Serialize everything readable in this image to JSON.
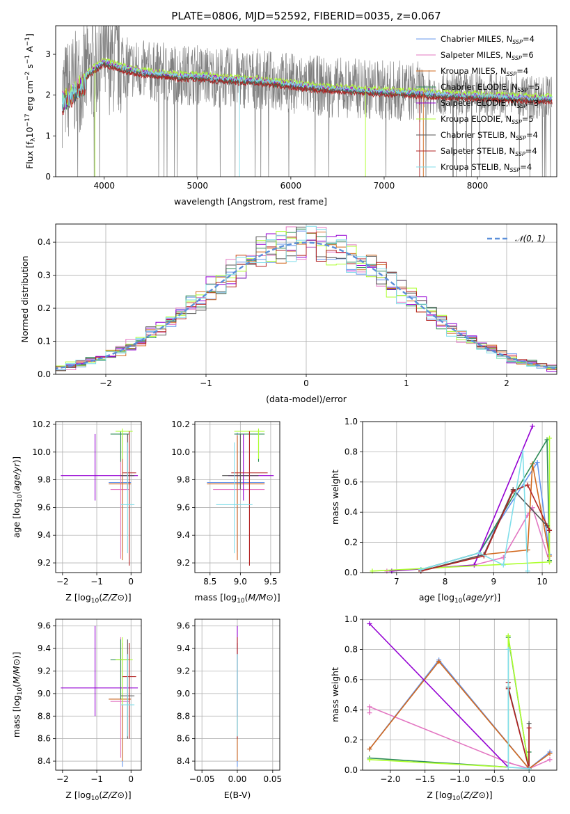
{
  "figure": {
    "title": "PLATE=0806, MJD=52592, FIBERID=0035, z=0.067"
  },
  "models": [
    {
      "name": "Chabrier MILES, N_SSP=4",
      "label_main": "Chabrier MILES, N",
      "label_sub": "SSP",
      "label_tail": "=4",
      "color": "#6495ed"
    },
    {
      "name": "Salpeter MILES, N_SSP=6",
      "label_main": "Salpeter MILES, N",
      "label_sub": "SSP",
      "label_tail": "=6",
      "color": "#e377c2"
    },
    {
      "name": "Kroupa MILES, N_SSP=4",
      "label_main": "Kroupa MILES, N",
      "label_sub": "SSP",
      "label_tail": "=4",
      "color": "#d2691e"
    },
    {
      "name": "Chabrier ELODIE, N_SSP=5",
      "label_main": "Chabrier ELODIE, N",
      "label_sub": "SSP",
      "label_tail": "=5",
      "color": "#2e8b57"
    },
    {
      "name": "Salpeter ELODIE, N_SSP=3",
      "label_main": "Salpeter ELODIE, N",
      "label_sub": "SSP",
      "label_tail": "=3",
      "color": "#9400d3"
    },
    {
      "name": "Kroupa ELODIE, N_SSP=5",
      "label_main": "Kroupa ELODIE, N",
      "label_sub": "SSP",
      "label_tail": "=5",
      "color": "#adff2f"
    },
    {
      "name": "Chabrier STELIB, N_SSP=4",
      "label_main": "Chabrier STELIB, N",
      "label_sub": "SSP",
      "label_tail": "=4",
      "color": "#555555"
    },
    {
      "name": "Salpeter STELIB, N_SSP=4",
      "label_main": "Salpeter STELIB, N",
      "label_sub": "SSP",
      "label_tail": "=4",
      "color": "#b22222"
    },
    {
      "name": "Kroupa STELIB, N_SSP=4",
      "label_main": "Kroupa STELIB, N",
      "label_sub": "SSP",
      "label_tail": "=4",
      "color": "#80deea"
    }
  ],
  "chart_data": [
    {
      "id": "spectrum",
      "type": "line",
      "xlabel": "wavelength [Angstrom, rest frame]",
      "ylabel": "Flux [f_λ 10^-17 erg cm^-2 s^-1 A^-1]",
      "xlim": [
        3480,
        8850
      ],
      "ylim": [
        0,
        3.7
      ],
      "xticks": [
        4000,
        5000,
        6000,
        7000,
        8000
      ],
      "yticks": [
        0,
        1,
        2,
        3
      ],
      "data_color": "#808080",
      "continuum_knots": {
        "x": [
          3550,
          3650,
          3750,
          3900,
          4000,
          4200,
          4400,
          4600,
          4800,
          5000,
          5200,
          5400,
          5600,
          5800,
          6000,
          6200,
          6400,
          6600,
          6800,
          7000,
          7200,
          7400,
          7600,
          7800,
          8000,
          8200,
          8400,
          8600,
          8800
        ],
        "y": [
          2.0,
          2.2,
          2.4,
          2.7,
          2.85,
          2.7,
          2.6,
          2.55,
          2.5,
          2.5,
          2.45,
          2.42,
          2.4,
          2.35,
          2.3,
          2.25,
          2.2,
          2.18,
          2.15,
          2.12,
          2.1,
          2.08,
          2.05,
          2.03,
          2.02,
          2.0,
          1.98,
          1.96,
          1.95
        ]
      }
    },
    {
      "id": "residuals",
      "type": "step-histogram",
      "xlabel": "(data-model)/error",
      "ylabel": "Normed distribution",
      "xlim": [
        -2.5,
        2.5
      ],
      "ylim": [
        0,
        0.455
      ],
      "xticks": [
        -2,
        -1,
        0,
        1,
        2
      ],
      "yticks": [
        0.0,
        0.1,
        0.2,
        0.3,
        0.4
      ],
      "bin_width": 0.1,
      "reference": {
        "name": "N(0,1)",
        "label": "𝒩(0, 1)",
        "color": "#5b8fd9",
        "mean": 0,
        "sigma": 1
      }
    },
    {
      "id": "age-vs-Z",
      "type": "errorbar",
      "xlabel": "Z [log10(Z/Z⊙)]",
      "ylabel": "age  [log10(age/yr)]",
      "xlim": [
        -2.2,
        0.3
      ],
      "ylim": [
        9.13,
        10.22
      ],
      "xticks": [
        -2,
        -1,
        0
      ],
      "yticks": [
        9.2,
        9.4,
        9.6,
        9.8,
        10.0,
        10.2
      ],
      "points": [
        {
          "model": 0,
          "x": -0.25,
          "xerr": [
            0.4,
            0.25
          ],
          "y": 9.78,
          "yerr": [
            0.5,
            0.36
          ]
        },
        {
          "model": 1,
          "x": -0.3,
          "xerr": [
            0.3,
            0.25
          ],
          "y": 9.73,
          "yerr": [
            0.5,
            0.4
          ]
        },
        {
          "model": 2,
          "x": -0.25,
          "xerr": [
            0.4,
            0.25
          ],
          "y": 9.77,
          "yerr": [
            0.55,
            0.35
          ]
        },
        {
          "model": 3,
          "x": -0.3,
          "xerr": [
            0.3,
            0.25
          ],
          "y": 10.13,
          "yerr": [
            0.2,
            0.02
          ]
        },
        {
          "model": 4,
          "x": -1.05,
          "xerr": [
            1.0,
            1.25
          ],
          "y": 9.83,
          "yerr": [
            0.18,
            0.3
          ]
        },
        {
          "model": 5,
          "x": -0.25,
          "xerr": [
            0.2,
            0.3
          ],
          "y": 10.15,
          "yerr": [
            0.2,
            0.02
          ]
        },
        {
          "model": 6,
          "x": -0.1,
          "xerr": [
            0.2,
            0.2
          ],
          "y": 9.83,
          "yerr": [
            0.1,
            0.3
          ]
        },
        {
          "model": 7,
          "x": -0.05,
          "xerr": [
            0.2,
            0.2
          ],
          "y": 9.85,
          "yerr": [
            0.67,
            0.3
          ]
        },
        {
          "model": 8,
          "x": -0.1,
          "xerr": [
            0.2,
            0.2
          ],
          "y": 9.62,
          "yerr": [
            0.35,
            0.45
          ]
        }
      ]
    },
    {
      "id": "age-vs-mass",
      "type": "errorbar",
      "xlabel": "mass [log10(M/M⊙)]",
      "ylabel": "",
      "xlim": [
        8.25,
        9.65
      ],
      "ylim": [
        9.13,
        10.22
      ],
      "xticks": [
        8.5,
        9.0,
        9.5
      ],
      "yticks": [
        9.2,
        9.4,
        9.6,
        9.8,
        10.0,
        10.2
      ],
      "points": [
        {
          "model": 0,
          "x": 8.95,
          "xerr": [
            0.5,
            0.45
          ],
          "y": 9.78,
          "yerr": [
            0.5,
            0.36
          ]
        },
        {
          "model": 1,
          "x": 8.95,
          "xerr": [
            0.4,
            0.45
          ],
          "y": 9.73,
          "yerr": [
            0.5,
            0.4
          ]
        },
        {
          "model": 2,
          "x": 8.95,
          "xerr": [
            0.5,
            0.45
          ],
          "y": 9.77,
          "yerr": [
            0.55,
            0.35
          ]
        },
        {
          "model": 3,
          "x": 9.3,
          "xerr": [
            0.4,
            0.1
          ],
          "y": 10.13,
          "yerr": [
            0.2,
            0.02
          ]
        },
        {
          "model": 4,
          "x": 9.05,
          "xerr": [
            0.25,
            0.5
          ],
          "y": 9.83,
          "yerr": [
            0.18,
            0.3
          ]
        },
        {
          "model": 5,
          "x": 9.3,
          "xerr": [
            0.4,
            0.1
          ],
          "y": 10.15,
          "yerr": [
            0.2,
            0.02
          ]
        },
        {
          "model": 6,
          "x": 9.0,
          "xerr": [
            0.3,
            0.3
          ],
          "y": 9.83,
          "yerr": [
            0.1,
            0.3
          ]
        },
        {
          "model": 7,
          "x": 9.15,
          "xerr": [
            0.3,
            0.3
          ],
          "y": 9.85,
          "yerr": [
            0.67,
            0.3
          ]
        },
        {
          "model": 8,
          "x": 8.9,
          "xerr": [
            0.3,
            0.3
          ],
          "y": 9.62,
          "yerr": [
            0.35,
            0.45
          ]
        }
      ]
    },
    {
      "id": "weight-vs-age",
      "type": "line",
      "xlabel": "age  [log10(age/yr)]",
      "ylabel": "mass weight",
      "xlim": [
        6.3,
        10.3
      ],
      "ylim": [
        0,
        1.0
      ],
      "xticks": [
        7,
        8,
        9,
        10
      ],
      "yticks": [
        0.0,
        0.2,
        0.4,
        0.6,
        0.8,
        1.0
      ],
      "series": [
        {
          "model": 0,
          "x": [
            7.5,
            8.7,
            9.9,
            10.15
          ],
          "y": [
            0.02,
            0.13,
            0.73,
            0.12
          ]
        },
        {
          "model": 1,
          "x": [
            6.8,
            8.6,
            9.2,
            9.7,
            9.8,
            10.15
          ],
          "y": [
            0.01,
            0.05,
            0.1,
            0.38,
            0.43,
            0.07
          ]
        },
        {
          "model": 2,
          "x": [
            7.5,
            8.8,
            9.7,
            9.8,
            10.15
          ],
          "y": [
            0.01,
            0.12,
            0.15,
            0.72,
            0.11
          ]
        },
        {
          "model": 3,
          "x": [
            7.5,
            8.7,
            10.1,
            10.15
          ],
          "y": [
            0.02,
            0.13,
            0.88,
            0.08
          ]
        },
        {
          "model": 4,
          "x": [
            6.9,
            8.6,
            9.8
          ],
          "y": [
            0.01,
            0.05,
            0.97
          ]
        },
        {
          "model": 5,
          "x": [
            6.5,
            10.15,
            10.15
          ],
          "y": [
            0.01,
            0.07,
            0.89
          ]
        },
        {
          "model": 6,
          "x": [
            7.5,
            8.8,
            9.4,
            10.1,
            10.15
          ],
          "y": [
            0.01,
            0.12,
            0.55,
            0.31,
            0.28
          ]
        },
        {
          "model": 7,
          "x": [
            7.5,
            8.8,
            9.4,
            9.7,
            10.15
          ],
          "y": [
            0.01,
            0.11,
            0.54,
            0.58,
            0.28
          ]
        },
        {
          "model": 8,
          "x": [
            7.5,
            8.7,
            9.2,
            9.6,
            9.7
          ],
          "y": [
            0.02,
            0.13,
            0.05,
            0.8,
            0.01
          ]
        }
      ]
    },
    {
      "id": "mass-vs-Z",
      "type": "errorbar",
      "xlabel": "Z [log10(Z/Z⊙)]",
      "ylabel": "mass [log10(M/M⊙)]",
      "xlim": [
        -2.2,
        0.3
      ],
      "ylim": [
        8.32,
        9.66
      ],
      "xticks": [
        -2,
        -1,
        0
      ],
      "yticks": [
        8.4,
        8.6,
        8.8,
        9.0,
        9.2,
        9.4,
        9.6
      ],
      "points": [
        {
          "model": 0,
          "x": -0.25,
          "xerr": [
            0.4,
            0.25
          ],
          "y": 8.95,
          "yerr": [
            0.6,
            0.5
          ]
        },
        {
          "model": 1,
          "x": -0.3,
          "xerr": [
            0.3,
            0.25
          ],
          "y": 8.93,
          "yerr": [
            0.5,
            0.57
          ]
        },
        {
          "model": 2,
          "x": -0.25,
          "xerr": [
            0.4,
            0.25
          ],
          "y": 8.95,
          "yerr": [
            0.55,
            0.5
          ]
        },
        {
          "model": 3,
          "x": -0.3,
          "xerr": [
            0.3,
            0.25
          ],
          "y": 9.3,
          "yerr": [
            0.35,
            0.18
          ]
        },
        {
          "model": 4,
          "x": -1.05,
          "xerr": [
            1.0,
            1.25
          ],
          "y": 9.05,
          "yerr": [
            0.25,
            0.55
          ]
        },
        {
          "model": 5,
          "x": -0.25,
          "xerr": [
            0.2,
            0.3
          ],
          "y": 9.3,
          "yerr": [
            0.4,
            0.2
          ]
        },
        {
          "model": 6,
          "x": -0.1,
          "xerr": [
            0.2,
            0.2
          ],
          "y": 8.98,
          "yerr": [
            0.38,
            0.5
          ]
        },
        {
          "model": 7,
          "x": -0.05,
          "xerr": [
            0.2,
            0.2
          ],
          "y": 9.15,
          "yerr": [
            0.55,
            0.3
          ]
        },
        {
          "model": 8,
          "x": -0.1,
          "xerr": [
            0.2,
            0.2
          ],
          "y": 8.9,
          "yerr": [
            0.28,
            0.45
          ]
        }
      ]
    },
    {
      "id": "mass-vs-EBV",
      "type": "errorbar",
      "xlabel": "E(B-V)",
      "ylabel": "",
      "xlim": [
        -0.06,
        0.06
      ],
      "ylim": [
        8.32,
        9.66
      ],
      "xticks": [
        -0.05,
        0.0,
        0.05
      ],
      "xticklabels": [
        "−0.05",
        "0.00",
        "0.05"
      ],
      "yticks": [
        8.4,
        8.6,
        8.8,
        9.0,
        9.2,
        9.4,
        9.6
      ],
      "points": [
        {
          "model": 0,
          "x": 0,
          "xerr": [
            0,
            0
          ],
          "y": 8.95,
          "yerr": [
            0.6,
            0.5
          ]
        },
        {
          "model": 2,
          "x": 0,
          "xerr": [
            0,
            0
          ],
          "y": 8.95,
          "yerr": [
            0.55,
            0.5
          ]
        },
        {
          "model": 4,
          "x": 0,
          "xerr": [
            0,
            0
          ],
          "y": 9.05,
          "yerr": [
            0.25,
            0.55
          ]
        },
        {
          "model": 7,
          "x": 0,
          "xerr": [
            0,
            0
          ],
          "y": 9.15,
          "yerr": [
            0.55,
            0.35
          ]
        },
        {
          "model": 8,
          "x": 0,
          "xerr": [
            0,
            0
          ],
          "y": 8.9,
          "yerr": [
            0.28,
            0.45
          ]
        }
      ]
    },
    {
      "id": "weight-vs-Z",
      "type": "line",
      "xlabel": "Z [log10(Z/Z⊙)]",
      "ylabel": "mass weight",
      "xlim": [
        -2.4,
        0.4
      ],
      "ylim": [
        0,
        1.0
      ],
      "xticks": [
        -2.0,
        -1.5,
        -1.0,
        -0.5,
        0.0
      ],
      "xticklabels": [
        "−2.0",
        "−1.5",
        "−1.0",
        "−0.5",
        "0.0"
      ],
      "yticks": [
        0.0,
        0.2,
        0.4,
        0.6,
        0.8,
        1.0
      ],
      "series": [
        {
          "model": 0,
          "x": [
            -2.3,
            -1.3,
            0.0,
            0.3
          ],
          "y": [
            0.14,
            0.73,
            0.01,
            0.12
          ]
        },
        {
          "model": 1,
          "x": [
            -2.3,
            -2.3,
            -0.3,
            0.0,
            0.3
          ],
          "y": [
            0.38,
            0.42,
            0.05,
            0.01,
            0.07
          ]
        },
        {
          "model": 2,
          "x": [
            -2.3,
            -1.3,
            0.0,
            0.3
          ],
          "y": [
            0.14,
            0.72,
            0.01,
            0.11
          ]
        },
        {
          "model": 3,
          "x": [
            -2.3,
            -0.3,
            -0.3,
            0.0,
            0.0
          ],
          "y": [
            0.08,
            0.02,
            0.88,
            0.01,
            0.12
          ]
        },
        {
          "model": 4,
          "x": [
            -2.3,
            -0.3
          ],
          "y": [
            0.97,
            0.02
          ]
        },
        {
          "model": 5,
          "x": [
            -2.3,
            -0.3,
            -0.3,
            0.0
          ],
          "y": [
            0.07,
            0.02,
            0.89,
            0.01
          ]
        },
        {
          "model": 6,
          "x": [
            -0.3,
            -0.3,
            0.0,
            0.0
          ],
          "y": [
            0.58,
            0.55,
            0.01,
            0.31
          ]
        },
        {
          "model": 7,
          "x": [
            -0.3,
            -0.3,
            0.0,
            0.0
          ],
          "y": [
            0.58,
            0.54,
            0.01,
            0.28
          ]
        },
        {
          "model": 8,
          "x": [
            -0.3,
            -0.3,
            0.0
          ],
          "y": [
            0.8,
            0.02,
            0.01
          ]
        }
      ]
    }
  ]
}
